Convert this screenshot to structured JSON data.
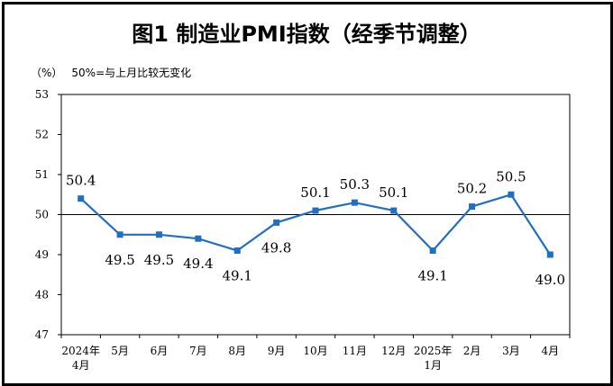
{
  "chart_data": {
    "type": "line",
    "title": "图1  制造业PMI指数（经季节调整）",
    "unit_label": "（%）",
    "note": "50%=与上月比较无变化",
    "categories": [
      [
        "2024年",
        "4月"
      ],
      [
        "5月"
      ],
      [
        "6月"
      ],
      [
        "7月"
      ],
      [
        "8月"
      ],
      [
        "9月"
      ],
      [
        "10月"
      ],
      [
        "11月"
      ],
      [
        "12月"
      ],
      [
        "2025年",
        "1月"
      ],
      [
        "2月"
      ],
      [
        "3月"
      ],
      [
        "4月"
      ]
    ],
    "series": [
      {
        "values": [
          50.4,
          49.5,
          49.5,
          49.4,
          49.1,
          49.8,
          50.1,
          50.3,
          50.1,
          49.1,
          50.2,
          50.5,
          49.0
        ]
      }
    ],
    "data_labels": [
      "50.4",
      "49.5",
      "49.5",
      "49.4",
      "49.1",
      "49.8",
      "50.1",
      "50.3",
      "50.1",
      "49.1",
      "50.2",
      "50.5",
      "49.0"
    ],
    "ylim": [
      47,
      53
    ],
    "yticks": [
      "47",
      "48",
      "49",
      "50",
      "51",
      "52",
      "53"
    ],
    "reference_line": 50,
    "grid": false,
    "line_color": "#1f6fc5"
  }
}
